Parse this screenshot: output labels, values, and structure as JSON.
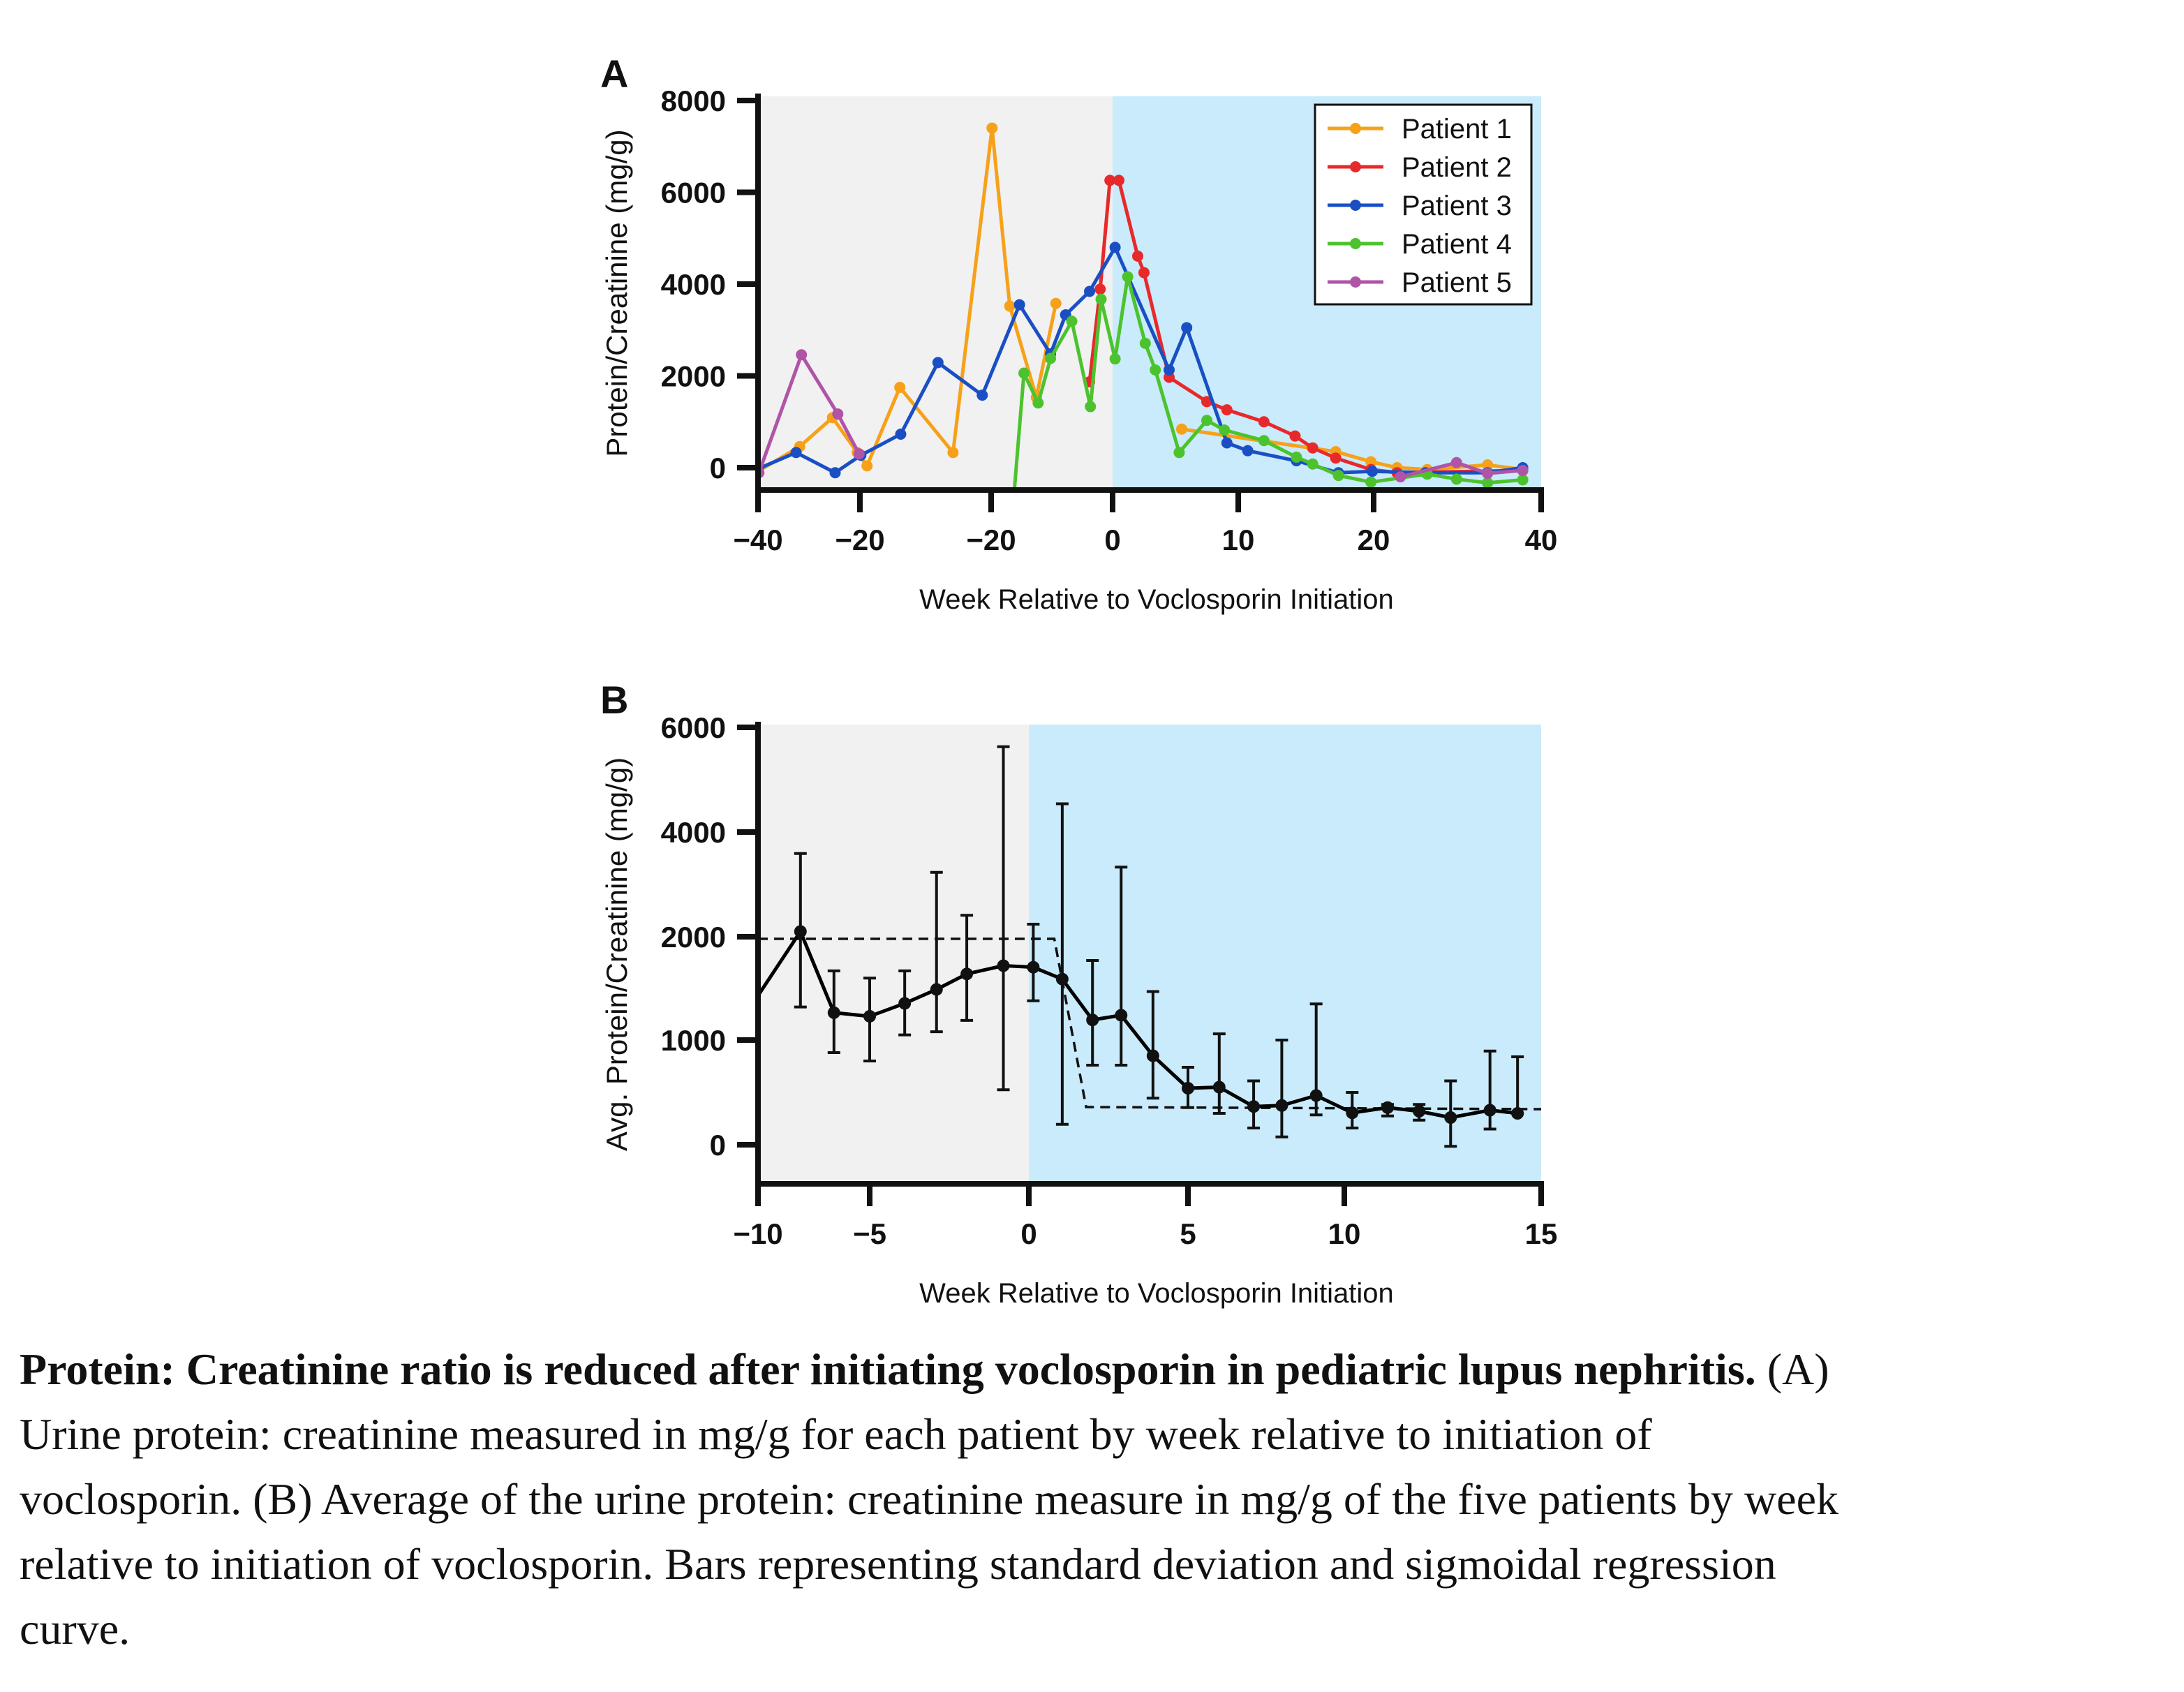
{
  "chart_data": [
    {
      "panel": "A",
      "type": "line",
      "ylabel": "Protein/Creatinine (mg/g)",
      "xlabel": "Week Relative to Voclosporin Initiation",
      "x_tick_labels": [
        "−40",
        "−20",
        "−20",
        "0",
        "10",
        "20",
        "40"
      ],
      "y_tick_labels": [
        "8000",
        "6000",
        "4000",
        "2000",
        "0"
      ],
      "ylim": [
        -500,
        8000
      ],
      "xlim": [
        -40,
        40
      ],
      "shading": {
        "before_initiation": "#F1F1F1",
        "after_initiation": "#C9EBFB",
        "boundary_week": 0
      },
      "legend_position": "top-right",
      "series": [
        {
          "name": "Patient 1",
          "color": "#F7A11A",
          "points": [
            [
              -40,
              -80
            ],
            [
              -35.3,
              460
            ],
            [
              -31.6,
              1090
            ],
            [
              -28.8,
              330
            ],
            [
              -27.7,
              40
            ],
            [
              -24.0,
              1750
            ],
            [
              -18.0,
              330
            ],
            [
              -13.6,
              7400
            ],
            [
              -11.6,
              3520
            ],
            [
              -8.6,
              1530
            ],
            [
              -6.4,
              3580
            ],
            null,
            [
              5.5,
              840
            ],
            [
              17.2,
              350
            ],
            [
              19.8,
              130
            ],
            [
              22.8,
              0
            ],
            [
              26.4,
              -40
            ],
            [
              33.6,
              60
            ],
            [
              37.8,
              -40
            ]
          ]
        },
        {
          "name": "Patient 2",
          "color": "#E8292B",
          "points": [
            [
              -2.6,
              1870
            ],
            [
              -1.4,
              3890
            ],
            [
              -0.3,
              6260
            ],
            [
              0.5,
              6260
            ],
            [
              2.0,
              4610
            ],
            [
              2.5,
              4250
            ],
            [
              4.5,
              1970
            ],
            [
              7.5,
              1440
            ],
            [
              9.1,
              1260
            ],
            [
              11.9,
              1000
            ],
            [
              14.2,
              690
            ],
            [
              15.5,
              430
            ],
            [
              17.2,
              210
            ],
            [
              19.8,
              -40
            ],
            [
              22.8,
              -110
            ],
            [
              37.8,
              -60
            ]
          ]
        },
        {
          "name": "Patient 3",
          "color": "#1A4FC4",
          "points": [
            [
              -40,
              -25
            ],
            [
              -35.7,
              330
            ],
            [
              -31.3,
              -110
            ],
            [
              -28.4,
              270
            ],
            [
              -23.9,
              730
            ],
            [
              -19.7,
              2290
            ],
            [
              -14.7,
              1580
            ],
            [
              -10.5,
              3550
            ],
            [
              -7.0,
              2480
            ],
            [
              -5.3,
              3330
            ],
            [
              -2.6,
              3840
            ],
            [
              0.2,
              4800
            ],
            [
              4.5,
              2130
            ],
            [
              5.9,
              3050
            ],
            [
              9.1,
              540
            ],
            [
              10.7,
              370
            ],
            [
              14.3,
              150
            ],
            [
              17.4,
              -110
            ],
            [
              19.9,
              -80
            ],
            [
              26.2,
              -110
            ],
            [
              33.6,
              -110
            ],
            [
              37.8,
              0
            ]
          ]
        },
        {
          "name": "Patient 4",
          "color": "#4CC32E",
          "points": [
            [
              -11.3,
              -1000
            ],
            [
              -10.0,
              2060
            ],
            [
              -8.4,
              1410
            ],
            [
              -7.0,
              2380
            ],
            [
              -4.6,
              3190
            ],
            [
              -2.5,
              1330
            ],
            [
              -1.3,
              3670
            ],
            [
              0.2,
              2370
            ],
            [
              1.2,
              4160
            ],
            [
              2.6,
              2710
            ],
            [
              3.4,
              2130
            ],
            [
              5.3,
              330
            ],
            [
              7.5,
              1030
            ],
            [
              8.9,
              820
            ],
            [
              11.9,
              590
            ],
            [
              14.3,
              230
            ],
            [
              15.5,
              80
            ],
            [
              17.4,
              -170
            ],
            [
              19.8,
              -315
            ],
            [
              26.4,
              -140
            ],
            [
              29.9,
              -250
            ],
            [
              33.6,
              -330
            ],
            [
              37.8,
              -265
            ]
          ]
        },
        {
          "name": "Patient 5",
          "color": "#B054A8",
          "points": [
            [
              -39.9,
              -110
            ],
            [
              -35.1,
              2460
            ],
            [
              -31.0,
              1170
            ],
            [
              -28.6,
              300
            ],
            null,
            [
              23.2,
              -200
            ],
            [
              29.9,
              110
            ],
            [
              33.6,
              -125
            ],
            [
              37.8,
              -60
            ]
          ]
        }
      ]
    },
    {
      "panel": "B",
      "type": "line",
      "ylabel": "Avg. Protein/Creatinine (mg/g)",
      "xlabel": "Week Relative to Voclosporin Initiation",
      "x_tick_labels": [
        "−10",
        "−5",
        "0",
        "5",
        "10",
        "15"
      ],
      "y_tick_labels": [
        "6000",
        "4000",
        "2000",
        "1000",
        "0"
      ],
      "xlim": [
        -10,
        15
      ],
      "ylim": [
        -350,
        6000
      ],
      "shading": {
        "before_initiation": "#F1F1F1",
        "after_initiation": "#C9EBFB",
        "boundary_week": 0
      },
      "error_bars": "standard deviation",
      "series_color": "#000000",
      "line_start": [
        -10,
        1430
      ],
      "points": [
        {
          "x": -8.1,
          "y": 2100,
          "upper": 3590,
          "lower": 1320
        },
        {
          "x": -6.6,
          "y": 1265,
          "upper": 1670,
          "lower": 880
        },
        {
          "x": -5.0,
          "y": 1230,
          "upper": 1600,
          "lower": 800
        },
        {
          "x": -3.9,
          "y": 1355,
          "upper": 1670,
          "lower": 1050
        },
        {
          "x": -2.9,
          "y": 1490,
          "upper": 3230,
          "lower": 1080
        },
        {
          "x": -1.95,
          "y": 1640,
          "upper": 2410,
          "lower": 1190
        },
        {
          "x": -0.8,
          "y": 1720,
          "upper": 5630,
          "lower": 525
        },
        {
          "x": 0.14,
          "y": 1705,
          "upper": 2240,
          "lower": 1380
        },
        {
          "x": 1.05,
          "y": 1590,
          "upper": 4540,
          "lower": 195
        },
        {
          "x": 2.0,
          "y": 1195,
          "upper": 1770,
          "lower": 760
        },
        {
          "x": 2.9,
          "y": 1240,
          "upper": 3330,
          "lower": 760
        },
        {
          "x": 3.9,
          "y": 850,
          "upper": 1470,
          "lower": 445
        },
        {
          "x": 5.0,
          "y": 540,
          "upper": 740,
          "lower": 355
        },
        {
          "x": 6.0,
          "y": 550,
          "upper": 1060,
          "lower": 300
        },
        {
          "x": 7.1,
          "y": 365,
          "upper": 610,
          "lower": 160
        },
        {
          "x": 8.0,
          "y": 375,
          "upper": 1000,
          "lower": 75
        },
        {
          "x": 9.1,
          "y": 470,
          "upper": 1350,
          "lower": 285
        },
        {
          "x": 10.2,
          "y": 305,
          "upper": 500,
          "lower": 160
        },
        {
          "x": 11.1,
          "y": 355,
          "upper": 385,
          "lower": 275
        },
        {
          "x": 11.9,
          "y": 320,
          "upper": 385,
          "lower": 235
        },
        {
          "x": 12.7,
          "y": 260,
          "upper": 610,
          "lower": -15
        },
        {
          "x": 13.7,
          "y": 330,
          "upper": 895,
          "lower": 150
        },
        {
          "x": 14.4,
          "y": 300,
          "upper": 840,
          "lower": 300
        }
      ],
      "sigmoidal_fit": {
        "style": "dashed",
        "points": [
          [
            -10,
            1980
          ],
          [
            0.8,
            1980
          ],
          [
            1.8,
            360
          ],
          [
            15,
            340
          ]
        ]
      }
    }
  ],
  "caption": {
    "title": "Protein: Creatinine ratio is reduced after initiating voclosporin in pediatric lupus nephritis.",
    "lines": [
      " (A)",
      "Urine protein: creatinine measured in mg/g for each patient by week relative to initiation of",
      "voclosporin. (B) Average of the urine protein: creatinine measure in mg/g of the five patients by week",
      "relative to initiation of voclosporin. Bars representing standard deviation and sigmoidal regression",
      "curve."
    ]
  }
}
